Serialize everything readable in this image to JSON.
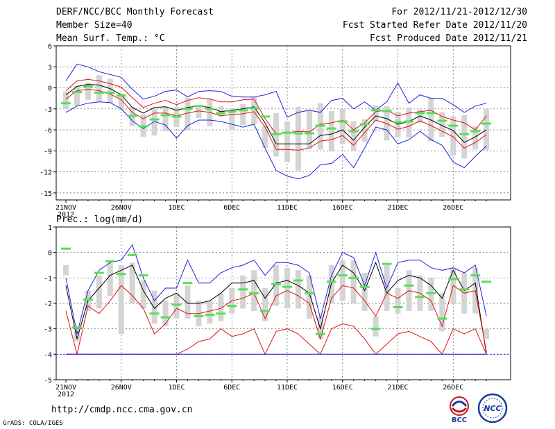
{
  "header": {
    "title": "DERF/NCC/BCC Monthly Forecast",
    "member_size": "Member Size=40",
    "variable": "Mean Surf. Temp.: °C",
    "period": "For 2012/11/21-2012/12/30",
    "start_ref": "Fcst Started Refer Date 2012/11/20",
    "produced": "Fcst Produced Date 2012/11/21"
  },
  "footer": {
    "url": "http://cmdp.ncc.cma.gov.cn",
    "credit": "GrADS: COLA/IGES",
    "logo_left_text": "BCC",
    "logo_right_text": "NCC"
  },
  "colors": {
    "max_line": "#1f1fdc",
    "min_line": "#1f1fdc",
    "mean_line": "#000000",
    "spread_line": "#e01010",
    "box": "#d4d4d4",
    "obs_marker": "#55e055",
    "zero_line": "#1f1fdc"
  },
  "chart_data": [
    {
      "type": "line",
      "title": "Mean Surf. Temp.: °C",
      "x_start": "2012-11-21",
      "days": 39,
      "x_tick_labels": [
        "21NOV",
        "26NOV",
        "1DEC",
        "6DEC",
        "11DEC",
        "16DEC",
        "21DEC",
        "26DEC"
      ],
      "x_year_label": "2012",
      "ylim": [
        -16,
        6
      ],
      "yticks": [
        6,
        3,
        0,
        -3,
        -6,
        -9,
        -12,
        -15
      ],
      "series": [
        {
          "name": "max",
          "values": [
            1,
            3.4,
            3,
            2.3,
            1.9,
            1.5,
            -0.2,
            -1.6,
            -1.2,
            -0.5,
            -0.3,
            -1.3,
            -0.5,
            -0.4,
            -0.5,
            -1.2,
            -1.3,
            -1.3,
            -1.0,
            -0.5,
            -4.2,
            -3.5,
            -3.2,
            -3.5,
            -1.8,
            -1.5,
            -3.0,
            -2.0,
            -3.2,
            -2.0,
            0.7,
            -2.2,
            -1.0,
            -1.5,
            -1.5,
            -2.4,
            -3.5,
            -2.6,
            -2.2
          ]
        },
        {
          "name": "upper",
          "values": [
            -0.4,
            1.0,
            1.2,
            1.0,
            0.6,
            0.1,
            -1.4,
            -2.8,
            -2.2,
            -1.8,
            -2.4,
            -1.8,
            -1.4,
            -1.6,
            -2.0,
            -2.0,
            -1.7,
            -1.6,
            -4.4,
            -6.6,
            -6.4,
            -6.2,
            -6.3,
            -5.2,
            -5.0,
            -4.6,
            -6.0,
            -5.0,
            -3.4,
            -3.2,
            -4.0,
            -3.6,
            -3.4,
            -3.2,
            -4.1,
            -4.6,
            -5.0,
            -6.0,
            -4.0
          ]
        },
        {
          "name": "mean",
          "values": [
            -1.0,
            0.2,
            0.5,
            0.4,
            -0.1,
            -1.0,
            -2.8,
            -3.6,
            -2.8,
            -2.7,
            -3.2,
            -2.8,
            -2.6,
            -2.8,
            -3.4,
            -3.2,
            -3.0,
            -2.7,
            -5.0,
            -8.0,
            -8.0,
            -8.0,
            -8.0,
            -6.8,
            -6.6,
            -6.0,
            -7.5,
            -5.6,
            -4.0,
            -4.4,
            -5.2,
            -4.8,
            -4.0,
            -4.6,
            -5.4,
            -6.1,
            -7.8,
            -7.0,
            -6.0
          ]
        },
        {
          "name": "lower",
          "values": [
            -1.6,
            -0.4,
            -0.2,
            -0.4,
            -0.9,
            -1.7,
            -3.5,
            -4.4,
            -3.6,
            -3.6,
            -4.0,
            -3.6,
            -3.3,
            -3.5,
            -4.0,
            -3.8,
            -3.7,
            -3.4,
            -5.6,
            -8.8,
            -8.8,
            -8.9,
            -8.6,
            -7.6,
            -7.4,
            -6.8,
            -8.2,
            -6.4,
            -4.6,
            -5.1,
            -5.9,
            -5.5,
            -4.7,
            -5.4,
            -6.2,
            -7.0,
            -8.6,
            -7.8,
            -6.7
          ]
        },
        {
          "name": "min",
          "values": [
            -3.5,
            -2.6,
            -2.2,
            -2.0,
            -2.1,
            -3.0,
            -4.7,
            -5.8,
            -4.8,
            -5.3,
            -7.2,
            -5.4,
            -4.6,
            -4.6,
            -4.8,
            -5.2,
            -5.6,
            -5.2,
            -8.6,
            -11.8,
            -12.6,
            -13.0,
            -12.5,
            -11.0,
            -10.8,
            -9.5,
            -11.4,
            -8.6,
            -5.6,
            -6.0,
            -8.0,
            -7.4,
            -6.2,
            -7.4,
            -8.2,
            -10.6,
            -11.4,
            -9.8,
            -8.3
          ]
        },
        {
          "name": "obs",
          "values": [
            -2.2,
            -0.6,
            0.2,
            -0.7,
            -0.7,
            -1.1,
            -4.0,
            -5.5,
            -4.5,
            -3.9,
            -4.1,
            -3.0,
            -2.6,
            -3.0,
            -3.6,
            -3.4,
            -3.2,
            -2.9,
            -4.1,
            -6.6,
            -6.4,
            -6.5,
            -6.5,
            -5.4,
            -5.8,
            -4.8,
            -6.2,
            -5.2,
            -3.2,
            -3.3,
            -4.9,
            -4.8,
            -3.6,
            -3.6,
            -4.7,
            -5.4,
            -6.6,
            -6.2,
            -5.1
          ]
        }
      ],
      "box_high": [
        -0.5,
        0.3,
        0.8,
        1.8,
        1.3,
        -0.8,
        -2.7,
        -3.8,
        -3.0,
        -2.7,
        -2.7,
        -1.4,
        -2.8,
        -1.5,
        -2.6,
        -3.2,
        -2.3,
        -1.3,
        -5.4,
        -3.6,
        -4.8,
        -2.7,
        -3.2,
        -2.2,
        -3.3,
        -3.0,
        -4.8,
        -4.5,
        -2.5,
        -2.6,
        -3.4,
        -2.8,
        -3.1,
        -1.4,
        -3.5,
        -4.1,
        -3.9,
        -5.5,
        -3.0
      ],
      "box_low": [
        -3.0,
        -2.6,
        -1.7,
        -1.9,
        -2.2,
        -3.2,
        -5.4,
        -7.0,
        -6.8,
        -6.2,
        -5.6,
        -6.0,
        -4.3,
        -5.5,
        -4.1,
        -5.9,
        -5.3,
        -5.2,
        -8.6,
        -9.8,
        -10.6,
        -11.8,
        -8.7,
        -8.8,
        -9.1,
        -8.0,
        -9.0,
        -7.7,
        -4.8,
        -7.5,
        -7.1,
        -7.1,
        -5.0,
        -7.6,
        -7.0,
        -9.7,
        -10.1,
        -8.8,
        -8.9
      ]
    },
    {
      "type": "line",
      "title": "Prec.: log(mm/d)",
      "x_start": "2012-11-21",
      "days": 39,
      "x_tick_labels": [
        "21NOV",
        "26NOV",
        "1DEC",
        "6DEC",
        "11DEC",
        "16DEC",
        "21DEC",
        "26DEC"
      ],
      "x_year_label": "2012",
      "ylim": [
        -5,
        1
      ],
      "yticks": [
        1,
        0,
        -1,
        -2,
        -3,
        -4,
        -5
      ],
      "series": [
        {
          "name": "max",
          "values": [
            -1.0,
            -3.2,
            -1.5,
            -0.7,
            -0.4,
            -0.3,
            0.3,
            -1.0,
            -1.9,
            -1.4,
            -1.4,
            -0.3,
            -1.2,
            -1.2,
            -0.8,
            -0.6,
            -0.5,
            -0.3,
            -0.9,
            -0.4,
            -0.4,
            -0.5,
            -0.8,
            -2.6,
            -0.9,
            0.0,
            -0.2,
            -1.3,
            0.0,
            -1.4,
            -0.4,
            -0.3,
            -0.3,
            -0.6,
            -0.7,
            -0.6,
            -0.8,
            -0.5,
            -2.5
          ]
        },
        {
          "name": "mean",
          "values": [
            -1.3,
            -3.4,
            -1.9,
            -1.4,
            -0.9,
            -0.7,
            -0.5,
            -1.5,
            -2.2,
            -1.8,
            -1.6,
            -2.0,
            -2.0,
            -1.9,
            -1.6,
            -1.2,
            -1.2,
            -1.1,
            -1.8,
            -1.2,
            -1.1,
            -1.3,
            -1.6,
            -3.0,
            -1.2,
            -0.5,
            -0.8,
            -1.5,
            -0.4,
            -1.6,
            -1.1,
            -0.9,
            -1.0,
            -1.3,
            -1.8,
            -0.7,
            -1.5,
            -1.2,
            -4.0
          ]
        },
        {
          "name": "upper",
          "values": [
            -2.3,
            -4.0,
            -2.1,
            -2.4,
            -1.9,
            -1.3,
            -1.7,
            -2.2,
            -3.2,
            -2.8,
            -2.2,
            -2.4,
            -2.4,
            -2.3,
            -2.2,
            -1.9,
            -1.8,
            -1.6,
            -2.6,
            -1.7,
            -1.5,
            -1.7,
            -2.0,
            -3.4,
            -1.8,
            -1.3,
            -1.4,
            -1.9,
            -2.5,
            -1.6,
            -1.8,
            -1.5,
            -1.6,
            -1.9,
            -2.9,
            -1.3,
            -1.6,
            -1.5,
            -3.9
          ]
        },
        {
          "name": "lower",
          "values": [
            -4.0,
            -4.0,
            -4.0,
            -4.0,
            -4.0,
            -4.0,
            -4.0,
            -4.0,
            -4.0,
            -4.0,
            -4.0,
            -3.8,
            -3.5,
            -3.4,
            -3.0,
            -3.3,
            -3.2,
            -3.0,
            -4.0,
            -3.1,
            -3.0,
            -3.2,
            -3.6,
            -4.0,
            -3.0,
            -2.8,
            -2.9,
            -3.4,
            -4.0,
            -3.6,
            -3.2,
            -3.1,
            -3.3,
            -3.5,
            -4.0,
            -3.0,
            -3.2,
            -3.0,
            -4.0
          ]
        },
        {
          "name": "min",
          "values": [
            -4.0,
            -4.0,
            -4.0,
            -4.0,
            -4.0,
            -4.0,
            -4.0,
            -4.0,
            -4.0,
            -4.0,
            -4.0,
            -4.0,
            -4.0,
            -4.0,
            -4.0,
            -4.0,
            -4.0,
            -4.0,
            -4.0,
            -4.0,
            -4.0,
            -4.0,
            -4.0,
            -4.0,
            -4.0,
            -4.0,
            -4.0,
            -4.0,
            -4.0,
            -4.0,
            -4.0,
            -4.0,
            -4.0,
            -4.0,
            -4.0,
            -4.0,
            -4.0,
            -4.0,
            -4.0
          ]
        },
        {
          "name": "obs",
          "values": [
            0.15,
            -2.95,
            -1.85,
            -0.8,
            -0.35,
            -0.85,
            -0.1,
            -0.9,
            -2.4,
            -2.55,
            -2.05,
            -1.2,
            -2.5,
            -2.45,
            -2.4,
            -2.1,
            -1.45,
            -1.6,
            -2.3,
            -1.25,
            -1.35,
            -1.1,
            -1.6,
            -3.2,
            -1.15,
            -0.9,
            -1.0,
            -1.35,
            -3.0,
            -0.45,
            -2.15,
            -1.3,
            -1.75,
            -1.6,
            -2.6,
            -1.05,
            -1.45,
            -0.9,
            -1.15
          ]
        }
      ],
      "box_high": [
        -0.5,
        -3.1,
        -1.5,
        -0.9,
        -0.4,
        -0.5,
        -0.4,
        -1.1,
        -1.5,
        -1.9,
        -1.6,
        -1.3,
        -1.9,
        -1.9,
        -1.6,
        -1.4,
        -0.9,
        -0.7,
        -1.4,
        -0.5,
        -0.6,
        -0.7,
        -0.9,
        -2.5,
        -0.5,
        -0.3,
        -0.3,
        -0.8,
        -2.5,
        -0.5,
        -1.4,
        -0.7,
        -0.9,
        -1.0,
        -1.6,
        -0.6,
        -0.8,
        -0.6,
        -3.0
      ],
      "box_low": [
        -0.9,
        -3.5,
        -2.3,
        -2.2,
        -1.7,
        -3.2,
        -2.0,
        -2.2,
        -2.8,
        -2.9,
        -2.6,
        -2.6,
        -2.9,
        -2.8,
        -2.7,
        -2.4,
        -2.2,
        -2.3,
        -2.7,
        -2.1,
        -2.2,
        -2.2,
        -2.6,
        -3.4,
        -2.0,
        -1.9,
        -2.0,
        -2.3,
        -3.3,
        -2.3,
        -2.4,
        -2.3,
        -2.3,
        -2.3,
        -3.1,
        -2.0,
        -2.4,
        -2.4,
        -3.4
      ]
    }
  ]
}
